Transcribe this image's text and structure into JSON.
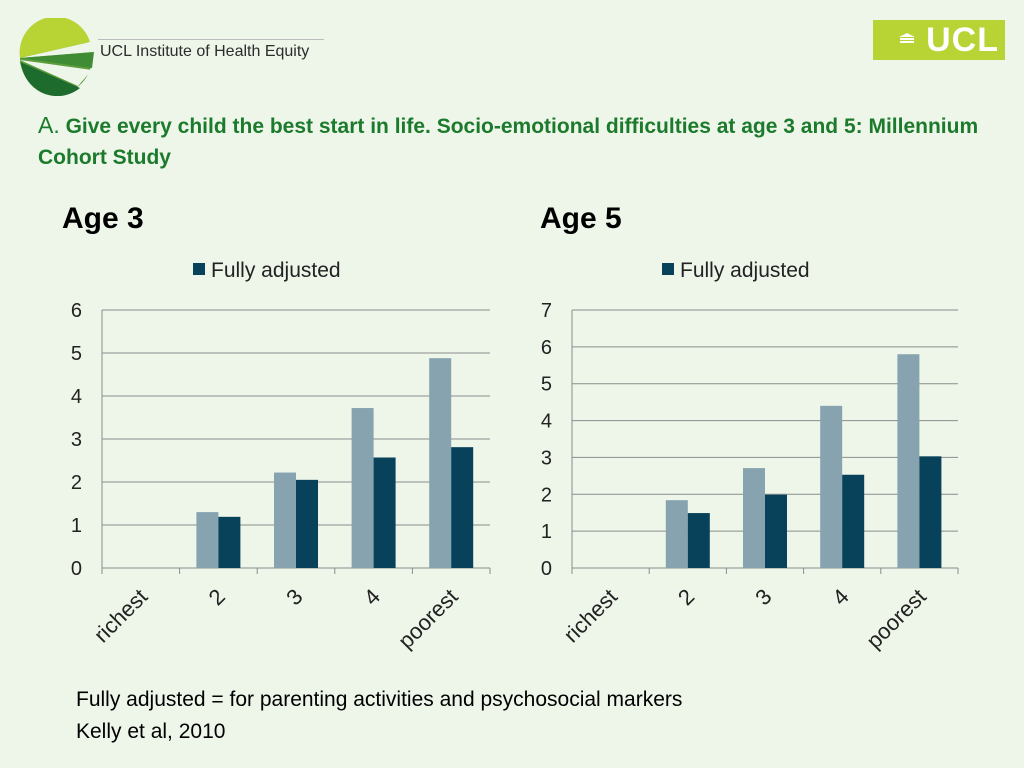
{
  "header": {
    "logo_text": "UCL Institute of Health Equity",
    "ucl_label": "UCL"
  },
  "title": {
    "prefix": "A.",
    "text": "Give every child the best start in life. Socio-emotional difficulties at age 3 and 5: Millennium Cohort Study"
  },
  "colors": {
    "title": "#1b7a2b",
    "light_bar": "#87a3b0",
    "dark_bar": "#07425a",
    "ucl_green": "#b7d334"
  },
  "chart_data": [
    {
      "type": "bar",
      "title": "Age 3",
      "categories": [
        "richest",
        "2",
        "3",
        "4",
        "poorest"
      ],
      "series": [
        {
          "values": [
            null,
            1.3,
            2.22,
            3.72,
            4.88
          ]
        },
        {
          "name": "Fully adjusted",
          "values": [
            null,
            1.19,
            2.05,
            2.57,
            2.81
          ]
        }
      ],
      "ylim": [
        0,
        6
      ],
      "yticks": [
        "0",
        "1",
        "2",
        "3",
        "4",
        "5",
        "6"
      ],
      "legend": "top",
      "grid": true
    },
    {
      "type": "bar",
      "title": "Age 5",
      "categories": [
        "richest",
        "2",
        "3",
        "4",
        "poorest"
      ],
      "series": [
        {
          "values": [
            null,
            1.84,
            2.71,
            4.4,
            5.8
          ]
        },
        {
          "name": "Fully adjusted",
          "values": [
            null,
            1.49,
            1.99,
            2.53,
            3.03
          ]
        }
      ],
      "ylim": [
        0,
        7
      ],
      "yticks": [
        "0",
        "1",
        "2",
        "3",
        "4",
        "5",
        "6",
        "7"
      ],
      "legend": "top",
      "grid": true
    }
  ],
  "footnotes": [
    "Fully adjusted = for parenting activities and psychosocial markers",
    "Kelly et al, 2010"
  ]
}
